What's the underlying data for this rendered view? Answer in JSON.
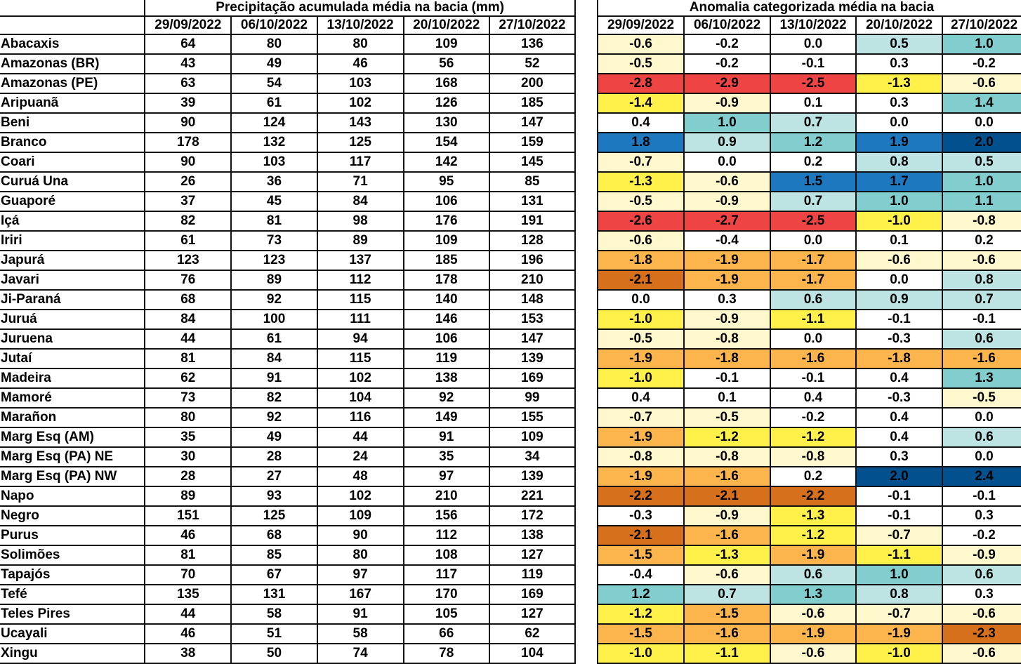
{
  "precip_table": {
    "title": "Precipitação acumulada média na bacia (mm)",
    "dates": [
      "29/09/2022",
      "06/10/2022",
      "13/10/2022",
      "20/10/2022",
      "27/10/2022"
    ],
    "rows": [
      {
        "name": "Abacaxis",
        "values": [
          64,
          80,
          80,
          109,
          136
        ]
      },
      {
        "name": "Amazonas (BR)",
        "values": [
          43,
          49,
          46,
          56,
          52
        ]
      },
      {
        "name": "Amazonas (PE)",
        "values": [
          63,
          54,
          103,
          168,
          200
        ]
      },
      {
        "name": "Aripuanã",
        "values": [
          39,
          61,
          102,
          126,
          185
        ]
      },
      {
        "name": "Beni",
        "values": [
          90,
          124,
          143,
          130,
          147
        ]
      },
      {
        "name": "Branco",
        "values": [
          178,
          132,
          125,
          154,
          159
        ]
      },
      {
        "name": "Coari",
        "values": [
          90,
          103,
          117,
          142,
          145
        ]
      },
      {
        "name": "Curuá Una",
        "values": [
          26,
          36,
          71,
          95,
          85
        ]
      },
      {
        "name": "Guaporé",
        "values": [
          37,
          45,
          84,
          106,
          131
        ]
      },
      {
        "name": "Içá",
        "values": [
          82,
          81,
          98,
          176,
          191
        ]
      },
      {
        "name": "Iriri",
        "values": [
          61,
          73,
          89,
          109,
          128
        ]
      },
      {
        "name": "Japurá",
        "values": [
          123,
          123,
          137,
          185,
          196
        ]
      },
      {
        "name": "Javari",
        "values": [
          76,
          89,
          112,
          178,
          210
        ]
      },
      {
        "name": "Ji-Paraná",
        "values": [
          68,
          92,
          115,
          140,
          148
        ]
      },
      {
        "name": "Juruá",
        "values": [
          84,
          100,
          111,
          146,
          153
        ]
      },
      {
        "name": "Juruena",
        "values": [
          44,
          61,
          94,
          106,
          147
        ]
      },
      {
        "name": "Jutaí",
        "values": [
          81,
          84,
          115,
          119,
          139
        ]
      },
      {
        "name": "Madeira",
        "values": [
          62,
          91,
          102,
          138,
          169
        ]
      },
      {
        "name": "Mamoré",
        "values": [
          73,
          82,
          104,
          92,
          99
        ]
      },
      {
        "name": "Marañon",
        "values": [
          80,
          92,
          116,
          149,
          155
        ]
      },
      {
        "name": "Marg Esq (AM)",
        "values": [
          35,
          49,
          44,
          91,
          109
        ]
      },
      {
        "name": "Marg Esq (PA) NE",
        "values": [
          30,
          28,
          24,
          35,
          34
        ]
      },
      {
        "name": "Marg Esq (PA) NW",
        "values": [
          28,
          27,
          48,
          97,
          139
        ]
      },
      {
        "name": "Napo",
        "values": [
          89,
          93,
          102,
          210,
          221
        ]
      },
      {
        "name": "Negro",
        "values": [
          151,
          125,
          109,
          156,
          172
        ]
      },
      {
        "name": "Purus",
        "values": [
          46,
          68,
          90,
          112,
          138
        ]
      },
      {
        "name": "Solimões",
        "values": [
          81,
          85,
          80,
          108,
          127
        ]
      },
      {
        "name": "Tapajós",
        "values": [
          70,
          67,
          97,
          117,
          119
        ]
      },
      {
        "name": "Tefé",
        "values": [
          135,
          131,
          167,
          170,
          169
        ]
      },
      {
        "name": "Teles Pires",
        "values": [
          44,
          58,
          91,
          105,
          127
        ]
      },
      {
        "name": "Ucayali",
        "values": [
          46,
          51,
          58,
          66,
          62
        ]
      },
      {
        "name": "Xingu",
        "values": [
          38,
          50,
          74,
          78,
          104
        ]
      }
    ]
  },
  "anomaly_table": {
    "title": "Anomalia categorizada média na bacia",
    "dates": [
      "29/09/2022",
      "06/10/2022",
      "13/10/2022",
      "20/10/2022",
      "27/10/2022"
    ],
    "colors": {
      "vneg3": "#d6701c",
      "vneg2": "#ee4444",
      "neg2": "#fbb54c",
      "neg1": "#fff04a",
      "neg0": "#fff8cc",
      "zero": "#ffffff",
      "pos0": "#bde3e3",
      "pos1": "#82cdcd",
      "pos2": "#1e78c0",
      "pos3": "#03508f"
    },
    "rows": [
      {
        "values": [
          "-0.6",
          "-0.2",
          "0.0",
          "0.5",
          "1.0"
        ],
        "cats": [
          "neg0",
          "zero",
          "zero",
          "pos0",
          "pos1"
        ]
      },
      {
        "values": [
          "-0.5",
          "-0.2",
          "-0.1",
          "0.3",
          "-0.2"
        ],
        "cats": [
          "neg0",
          "zero",
          "zero",
          "zero",
          "zero"
        ]
      },
      {
        "values": [
          "-2.8",
          "-2.9",
          "-2.5",
          "-1.3",
          "-0.6"
        ],
        "cats": [
          "vneg2",
          "vneg2",
          "vneg2",
          "neg1",
          "neg0"
        ]
      },
      {
        "values": [
          "-1.4",
          "-0.9",
          "0.1",
          "0.3",
          "1.4"
        ],
        "cats": [
          "neg1",
          "neg0",
          "zero",
          "zero",
          "pos1"
        ]
      },
      {
        "values": [
          "0.4",
          "1.0",
          "0.7",
          "0.0",
          "0.0"
        ],
        "cats": [
          "zero",
          "pos1",
          "pos0",
          "zero",
          "zero"
        ]
      },
      {
        "values": [
          "1.8",
          "0.9",
          "1.2",
          "1.9",
          "2.0"
        ],
        "cats": [
          "pos2",
          "pos0",
          "pos1",
          "pos2",
          "pos3"
        ]
      },
      {
        "values": [
          "-0.7",
          "0.0",
          "0.2",
          "0.8",
          "0.5"
        ],
        "cats": [
          "neg0",
          "zero",
          "zero",
          "pos0",
          "pos0"
        ]
      },
      {
        "values": [
          "-1.3",
          "-0.6",
          "1.5",
          "1.7",
          "1.0"
        ],
        "cats": [
          "neg1",
          "neg0",
          "pos2",
          "pos2",
          "pos1"
        ]
      },
      {
        "values": [
          "-0.5",
          "-0.9",
          "0.7",
          "1.0",
          "1.1"
        ],
        "cats": [
          "neg0",
          "neg0",
          "pos0",
          "pos1",
          "pos1"
        ]
      },
      {
        "values": [
          "-2.6",
          "-2.7",
          "-2.5",
          "-1.0",
          "-0.8"
        ],
        "cats": [
          "vneg2",
          "vneg2",
          "vneg2",
          "neg1",
          "neg0"
        ]
      },
      {
        "values": [
          "-0.6",
          "-0.4",
          "0.0",
          "0.1",
          "0.2"
        ],
        "cats": [
          "neg0",
          "zero",
          "zero",
          "zero",
          "zero"
        ]
      },
      {
        "values": [
          "-1.8",
          "-1.9",
          "-1.7",
          "-0.6",
          "-0.6"
        ],
        "cats": [
          "neg2",
          "neg2",
          "neg2",
          "neg0",
          "neg0"
        ]
      },
      {
        "values": [
          "-2.1",
          "-1.9",
          "-1.7",
          "0.0",
          "0.8"
        ],
        "cats": [
          "vneg3",
          "neg2",
          "neg2",
          "zero",
          "pos0"
        ]
      },
      {
        "values": [
          "0.0",
          "0.3",
          "0.6",
          "0.9",
          "0.7"
        ],
        "cats": [
          "zero",
          "zero",
          "pos0",
          "pos0",
          "pos0"
        ]
      },
      {
        "values": [
          "-1.0",
          "-0.9",
          "-1.1",
          "-0.1",
          "-0.1"
        ],
        "cats": [
          "neg1",
          "neg0",
          "neg1",
          "zero",
          "zero"
        ]
      },
      {
        "values": [
          "-0.5",
          "-0.8",
          "0.0",
          "-0.3",
          "0.6"
        ],
        "cats": [
          "neg0",
          "neg0",
          "zero",
          "zero",
          "pos0"
        ]
      },
      {
        "values": [
          "-1.9",
          "-1.8",
          "-1.6",
          "-1.8",
          "-1.6"
        ],
        "cats": [
          "neg2",
          "neg2",
          "neg2",
          "neg2",
          "neg2"
        ]
      },
      {
        "values": [
          "-1.0",
          "-0.1",
          "-0.1",
          "0.4",
          "1.3"
        ],
        "cats": [
          "neg1",
          "zero",
          "zero",
          "zero",
          "pos1"
        ]
      },
      {
        "values": [
          "0.4",
          "0.1",
          "0.4",
          "-0.3",
          "-0.5"
        ],
        "cats": [
          "zero",
          "zero",
          "zero",
          "zero",
          "neg0"
        ]
      },
      {
        "values": [
          "-0.7",
          "-0.5",
          "-0.2",
          "0.4",
          "0.0"
        ],
        "cats": [
          "neg0",
          "neg0",
          "zero",
          "zero",
          "zero"
        ]
      },
      {
        "values": [
          "-1.9",
          "-1.2",
          "-1.2",
          "0.4",
          "0.6"
        ],
        "cats": [
          "neg2",
          "neg1",
          "neg1",
          "zero",
          "pos0"
        ]
      },
      {
        "values": [
          "-0.8",
          "-0.8",
          "-0.8",
          "0.3",
          "0.0"
        ],
        "cats": [
          "neg0",
          "neg0",
          "neg0",
          "zero",
          "zero"
        ]
      },
      {
        "values": [
          "-1.9",
          "-1.6",
          "0.2",
          "2.0",
          "2.4"
        ],
        "cats": [
          "neg2",
          "neg2",
          "zero",
          "pos3",
          "pos3"
        ]
      },
      {
        "values": [
          "-2.2",
          "-2.1",
          "-2.2",
          "-0.1",
          "-0.1"
        ],
        "cats": [
          "vneg3",
          "vneg3",
          "vneg3",
          "zero",
          "zero"
        ]
      },
      {
        "values": [
          "-0.3",
          "-0.9",
          "-1.3",
          "-0.1",
          "0.3"
        ],
        "cats": [
          "zero",
          "neg0",
          "neg1",
          "zero",
          "zero"
        ]
      },
      {
        "values": [
          "-2.1",
          "-1.6",
          "-1.2",
          "-0.7",
          "-0.2"
        ],
        "cats": [
          "vneg3",
          "neg2",
          "neg1",
          "neg0",
          "zero"
        ]
      },
      {
        "values": [
          "-1.5",
          "-1.3",
          "-1.9",
          "-1.1",
          "-0.9"
        ],
        "cats": [
          "neg2",
          "neg1",
          "neg2",
          "neg1",
          "neg0"
        ]
      },
      {
        "values": [
          "-0.4",
          "-0.6",
          "0.6",
          "1.0",
          "0.6"
        ],
        "cats": [
          "zero",
          "neg0",
          "pos0",
          "pos1",
          "pos0"
        ]
      },
      {
        "values": [
          "1.2",
          "0.7",
          "1.3",
          "0.8",
          "0.3"
        ],
        "cats": [
          "pos1",
          "pos0",
          "pos1",
          "pos0",
          "zero"
        ]
      },
      {
        "values": [
          "-1.2",
          "-1.5",
          "-0.6",
          "-0.7",
          "-0.6"
        ],
        "cats": [
          "neg1",
          "neg2",
          "neg0",
          "neg0",
          "neg0"
        ]
      },
      {
        "values": [
          "-1.5",
          "-1.6",
          "-1.9",
          "-1.9",
          "-2.3"
        ],
        "cats": [
          "neg2",
          "neg2",
          "neg2",
          "neg2",
          "vneg3"
        ]
      },
      {
        "values": [
          "-1.0",
          "-1.1",
          "-0.6",
          "-1.0",
          "-0.6"
        ],
        "cats": [
          "neg1",
          "neg1",
          "neg0",
          "neg1",
          "neg0"
        ]
      }
    ]
  }
}
